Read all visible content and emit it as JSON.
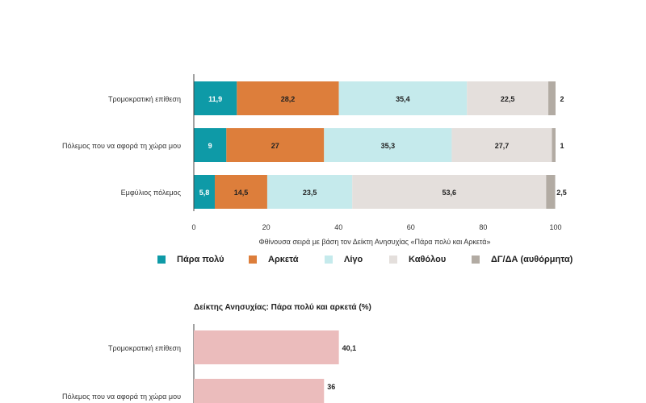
{
  "chart_data": [
    {
      "type": "bar",
      "orientation": "horizontal",
      "stacked": true,
      "categories": [
        "Τρομοκρατική επίθεση",
        "Πόλεμος που να αφορά τη χώρα μου",
        "Εμφύλιος πόλεμος"
      ],
      "series": [
        {
          "name": "Πάρα πολύ",
          "color": "#0e9aa7",
          "values": [
            11.9,
            9,
            5.8
          ],
          "labels": [
            "11,9",
            "9",
            "5,8"
          ]
        },
        {
          "name": "Αρκετά",
          "color": "#dd7e3b",
          "values": [
            28.2,
            27,
            14.5
          ],
          "labels": [
            "28,2",
            "27",
            "14,5"
          ]
        },
        {
          "name": "Λίγο",
          "color": "#c5eaec",
          "values": [
            35.4,
            35.3,
            23.5
          ],
          "labels": [
            "35,4",
            "35,3",
            "23,5"
          ]
        },
        {
          "name": "Καθόλου",
          "color": "#e4dfdc",
          "values": [
            22.5,
            27.7,
            53.6
          ],
          "labels": [
            "22,5",
            "27,7",
            "53,6"
          ]
        },
        {
          "name": "ΔΓ/ΔΑ (αυθόρμητα)",
          "color": "#b2aba3",
          "values": [
            2,
            1,
            2.5
          ],
          "labels": [
            "2",
            "1",
            "2,5"
          ]
        }
      ],
      "xlabel": "Φθίνουσα σειρά με βάση τον Δείκτη Ανησυχίας «Πάρα πολύ και Αρκετά»",
      "xlim": [
        0,
        100
      ],
      "xticks": [
        0,
        20,
        40,
        60,
        80,
        100
      ],
      "legend_position": "bottom",
      "grid": false
    },
    {
      "type": "bar",
      "orientation": "horizontal",
      "title": "Δείκτης Ανησυχίας: Πάρα πολύ και αρκετά  (%)",
      "categories": [
        "Τρομοκρατική επίθεση",
        "Πόλεμος που να αφορά τη χώρα μου"
      ],
      "values": [
        40.1,
        36
      ],
      "labels": [
        "40,1",
        "36"
      ],
      "color": "#ebbcbc",
      "xlim": [
        0,
        100
      ],
      "grid": false
    }
  ]
}
